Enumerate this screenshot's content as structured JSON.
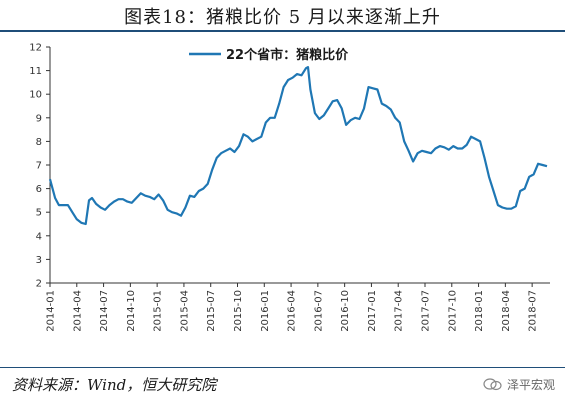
{
  "title": "图表18：猪粮比价 5 月以来逐渐上升",
  "source": "资料来源：Wind，恒大研究院",
  "watermark": "泽平宏观",
  "colors": {
    "series": "#1f77b4",
    "frame": "#1f4e79",
    "axis": "#333333"
  },
  "chart_data": {
    "type": "line",
    "legend_position": "top-center",
    "grid": false,
    "ylim": [
      2,
      12
    ],
    "yticks": [
      2,
      3,
      4,
      5,
      6,
      7,
      8,
      9,
      10,
      11,
      12
    ],
    "xlim": [
      "2014-01",
      "2018-09"
    ],
    "xticks": [
      "2014-01",
      "2014-04",
      "2014-07",
      "2014-10",
      "2015-01",
      "2015-04",
      "2015-07",
      "2015-10",
      "2016-01",
      "2016-04",
      "2016-07",
      "2016-10",
      "2017-01",
      "2017-04",
      "2017-07",
      "2017-10",
      "2018-01",
      "2018-04",
      "2018-07"
    ],
    "xlabel": "",
    "ylabel": "",
    "series": [
      {
        "name": "22个省市：猪粮比价",
        "color": "#1f77b4",
        "points": [
          [
            "2014-01-01",
            6.4
          ],
          [
            "2014-01-18",
            5.6
          ],
          [
            "2014-02-01",
            5.3
          ],
          [
            "2014-02-16",
            5.3
          ],
          [
            "2014-03-01",
            5.3
          ],
          [
            "2014-03-16",
            5.0
          ],
          [
            "2014-04-01",
            4.7
          ],
          [
            "2014-04-16",
            4.55
          ],
          [
            "2014-05-01",
            4.5
          ],
          [
            "2014-05-12",
            5.5
          ],
          [
            "2014-05-22",
            5.6
          ],
          [
            "2014-06-06",
            5.35
          ],
          [
            "2014-06-21",
            5.2
          ],
          [
            "2014-07-06",
            5.1
          ],
          [
            "2014-07-21",
            5.3
          ],
          [
            "2014-08-06",
            5.45
          ],
          [
            "2014-08-21",
            5.55
          ],
          [
            "2014-09-06",
            5.55
          ],
          [
            "2014-09-21",
            5.45
          ],
          [
            "2014-10-06",
            5.4
          ],
          [
            "2014-10-21",
            5.6
          ],
          [
            "2014-11-06",
            5.8
          ],
          [
            "2014-11-21",
            5.7
          ],
          [
            "2014-12-06",
            5.65
          ],
          [
            "2014-12-21",
            5.55
          ],
          [
            "2015-01-06",
            5.75
          ],
          [
            "2015-01-21",
            5.5
          ],
          [
            "2015-02-06",
            5.1
          ],
          [
            "2015-02-21",
            5.0
          ],
          [
            "2015-03-06",
            4.95
          ],
          [
            "2015-03-21",
            4.85
          ],
          [
            "2015-04-06",
            5.2
          ],
          [
            "2015-04-21",
            5.7
          ],
          [
            "2015-05-06",
            5.65
          ],
          [
            "2015-05-21",
            5.9
          ],
          [
            "2015-06-06",
            6.0
          ],
          [
            "2015-06-21",
            6.2
          ],
          [
            "2015-07-06",
            6.8
          ],
          [
            "2015-07-21",
            7.3
          ],
          [
            "2015-08-06",
            7.5
          ],
          [
            "2015-08-21",
            7.6
          ],
          [
            "2015-09-06",
            7.7
          ],
          [
            "2015-09-21",
            7.55
          ],
          [
            "2015-10-06",
            7.8
          ],
          [
            "2015-10-21",
            8.3
          ],
          [
            "2015-11-06",
            8.2
          ],
          [
            "2015-11-21",
            8.0
          ],
          [
            "2015-12-06",
            8.1
          ],
          [
            "2015-12-21",
            8.2
          ],
          [
            "2016-01-06",
            8.8
          ],
          [
            "2016-01-21",
            9.0
          ],
          [
            "2016-02-06",
            9.0
          ],
          [
            "2016-02-21",
            9.6
          ],
          [
            "2016-03-06",
            10.3
          ],
          [
            "2016-03-21",
            10.6
          ],
          [
            "2016-04-06",
            10.7
          ],
          [
            "2016-04-21",
            10.85
          ],
          [
            "2016-05-06",
            10.8
          ],
          [
            "2016-05-21",
            11.1
          ],
          [
            "2016-05-28",
            11.15
          ],
          [
            "2016-06-06",
            10.2
          ],
          [
            "2016-06-21",
            9.2
          ],
          [
            "2016-07-06",
            8.95
          ],
          [
            "2016-07-21",
            9.1
          ],
          [
            "2016-08-06",
            9.4
          ],
          [
            "2016-08-21",
            9.7
          ],
          [
            "2016-09-06",
            9.75
          ],
          [
            "2016-09-21",
            9.4
          ],
          [
            "2016-10-06",
            8.7
          ],
          [
            "2016-10-21",
            8.9
          ],
          [
            "2016-11-06",
            9.0
          ],
          [
            "2016-11-21",
            8.95
          ],
          [
            "2016-12-06",
            9.4
          ],
          [
            "2016-12-21",
            10.3
          ],
          [
            "2017-01-06",
            10.25
          ],
          [
            "2017-01-21",
            10.2
          ],
          [
            "2017-02-06",
            9.6
          ],
          [
            "2017-02-21",
            9.5
          ],
          [
            "2017-03-06",
            9.35
          ],
          [
            "2017-03-21",
            9.0
          ],
          [
            "2017-04-06",
            8.8
          ],
          [
            "2017-04-21",
            8.0
          ],
          [
            "2017-05-06",
            7.6
          ],
          [
            "2017-05-21",
            7.15
          ],
          [
            "2017-06-06",
            7.5
          ],
          [
            "2017-06-21",
            7.6
          ],
          [
            "2017-07-06",
            7.55
          ],
          [
            "2017-07-21",
            7.5
          ],
          [
            "2017-08-06",
            7.7
          ],
          [
            "2017-08-21",
            7.8
          ],
          [
            "2017-09-06",
            7.75
          ],
          [
            "2017-09-21",
            7.65
          ],
          [
            "2017-10-06",
            7.8
          ],
          [
            "2017-10-21",
            7.7
          ],
          [
            "2017-11-06",
            7.7
          ],
          [
            "2017-11-21",
            7.85
          ],
          [
            "2017-12-06",
            8.2
          ],
          [
            "2017-12-21",
            8.1
          ],
          [
            "2018-01-06",
            8.0
          ],
          [
            "2018-01-21",
            7.3
          ],
          [
            "2018-02-06",
            6.5
          ],
          [
            "2018-02-21",
            5.9
          ],
          [
            "2018-03-06",
            5.3
          ],
          [
            "2018-03-21",
            5.2
          ],
          [
            "2018-04-06",
            5.15
          ],
          [
            "2018-04-21",
            5.15
          ],
          [
            "2018-05-06",
            5.25
          ],
          [
            "2018-05-21",
            5.9
          ],
          [
            "2018-06-06",
            6.0
          ],
          [
            "2018-06-21",
            6.5
          ],
          [
            "2018-07-06",
            6.6
          ],
          [
            "2018-07-21",
            7.05
          ],
          [
            "2018-08-06",
            7.0
          ],
          [
            "2018-08-21",
            6.95
          ]
        ]
      }
    ]
  }
}
